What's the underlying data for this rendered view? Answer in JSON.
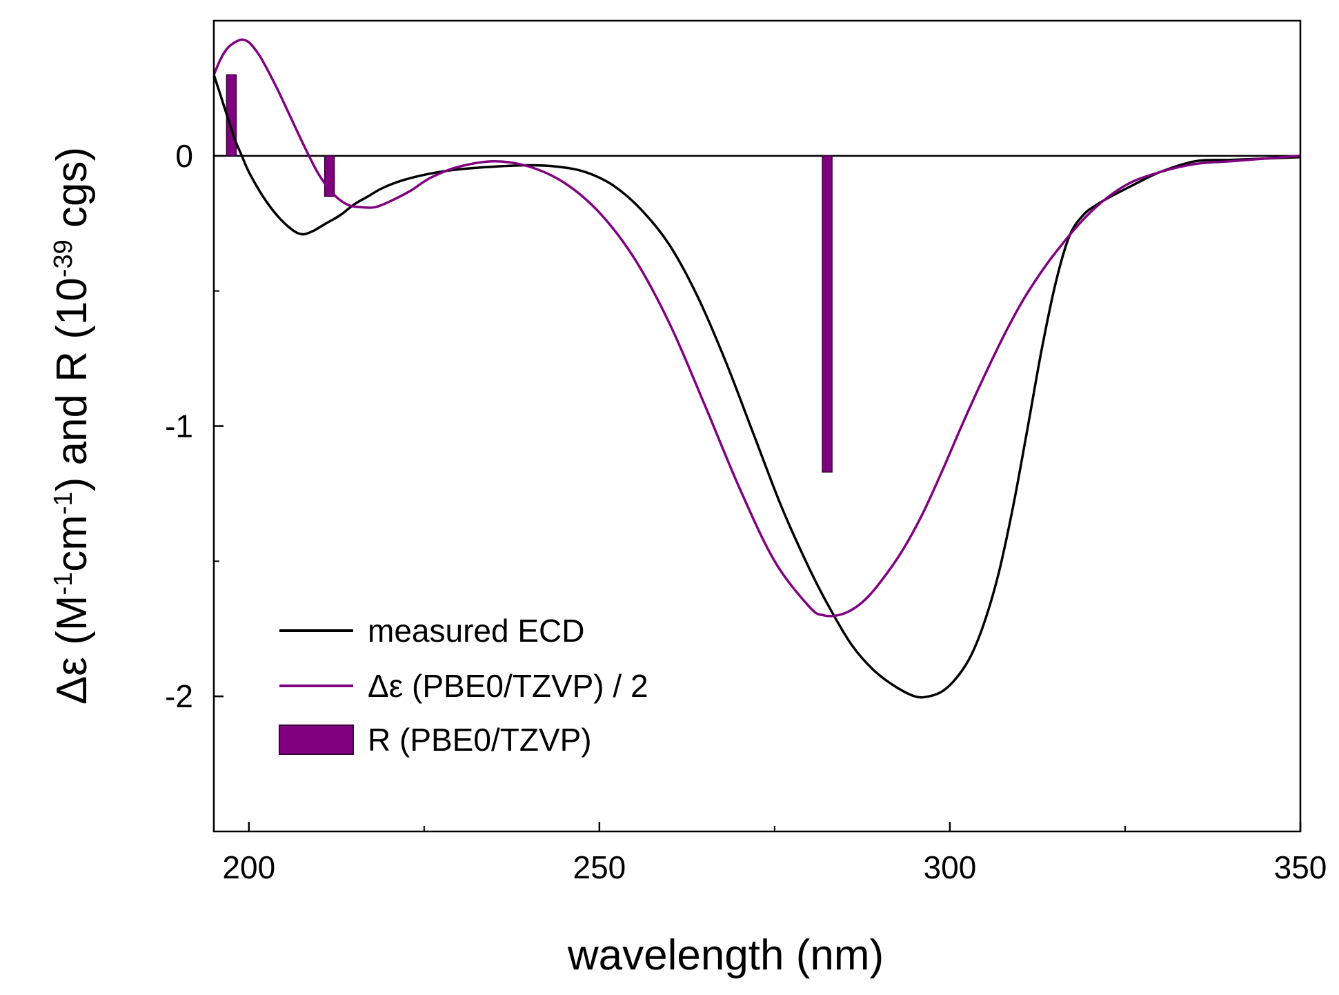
{
  "chart_data": {
    "type": "line",
    "title": "",
    "xlabel": "wavelength (nm)",
    "ylabel": {
      "main": "Δε (M",
      "sup1": "-1",
      "mid1": "cm",
      "sup2": "-1",
      "mid2": ") and R (10",
      "sup3": "-39",
      "end": " cgs)"
    },
    "xlim": [
      195,
      350
    ],
    "ylim": [
      -2.5,
      0.5
    ],
    "xticks": [
      200,
      250,
      300,
      350
    ],
    "xtick_labels": [
      "200",
      "250",
      "300",
      "350"
    ],
    "yticks": [
      0,
      -1,
      -2
    ],
    "ytick_labels": [
      "0",
      "-1",
      "-2"
    ],
    "zero_line": true,
    "grid": false,
    "legend_position": "bottom-left",
    "series": [
      {
        "name": "measured ECD",
        "kind": "line",
        "color": "#000000",
        "x": [
          195,
          196,
          197,
          198,
          199,
          200,
          202,
          204,
          206,
          207.5,
          209,
          211,
          213,
          215,
          217,
          219,
          222,
          226,
          230,
          235,
          240,
          244,
          248,
          252,
          256,
          260,
          264,
          268,
          272,
          276,
          280,
          283,
          286,
          289,
          292,
          295,
          297,
          299,
          301,
          303,
          305,
          307,
          309,
          311,
          313,
          315,
          317,
          319,
          321,
          323,
          326,
          330,
          335,
          340,
          345,
          350
        ],
        "y": [
          0.3,
          0.22,
          0.14,
          0.06,
          0.0,
          -0.06,
          -0.15,
          -0.22,
          -0.27,
          -0.29,
          -0.28,
          -0.25,
          -0.22,
          -0.18,
          -0.15,
          -0.12,
          -0.09,
          -0.065,
          -0.05,
          -0.04,
          -0.035,
          -0.04,
          -0.06,
          -0.11,
          -0.2,
          -0.33,
          -0.52,
          -0.76,
          -1.03,
          -1.3,
          -1.53,
          -1.68,
          -1.81,
          -1.9,
          -1.96,
          -2.0,
          -2.0,
          -1.98,
          -1.93,
          -1.85,
          -1.72,
          -1.54,
          -1.3,
          -1.02,
          -0.73,
          -0.48,
          -0.3,
          -0.22,
          -0.18,
          -0.15,
          -0.11,
          -0.06,
          -0.02,
          -0.015,
          -0.01,
          -0.005
        ]
      },
      {
        "name": "Δε (PBE0/TZVP) / 2",
        "kind": "line",
        "color": "#800080",
        "x": [
          195,
          196,
          197,
          198,
          199,
          200,
          201,
          202,
          204,
          206,
          208,
          210,
          212,
          214,
          216,
          218,
          220,
          223,
          226,
          230,
          235,
          240,
          245,
          250,
          255,
          260,
          265,
          270,
          275,
          280,
          282,
          284,
          286,
          288,
          290,
          293,
          296,
          299,
          302,
          305,
          308,
          311,
          315,
          320,
          325,
          330,
          335,
          340,
          345,
          350
        ],
        "y": [
          0.3,
          0.36,
          0.4,
          0.42,
          0.43,
          0.42,
          0.39,
          0.35,
          0.25,
          0.14,
          0.03,
          -0.07,
          -0.14,
          -0.18,
          -0.19,
          -0.19,
          -0.17,
          -0.13,
          -0.08,
          -0.04,
          -0.02,
          -0.04,
          -0.1,
          -0.21,
          -0.38,
          -0.62,
          -0.92,
          -1.23,
          -1.5,
          -1.67,
          -1.7,
          -1.7,
          -1.68,
          -1.64,
          -1.58,
          -1.47,
          -1.33,
          -1.16,
          -0.98,
          -0.81,
          -0.65,
          -0.51,
          -0.36,
          -0.21,
          -0.11,
          -0.06,
          -0.03,
          -0.02,
          -0.01,
          0.0
        ]
      },
      {
        "name": "R (PBE0/TZVP)",
        "kind": "bar",
        "color": "#800080",
        "x": [
          197.5,
          211.5,
          282.5
        ],
        "y": [
          0.3,
          -0.15,
          -1.17
        ]
      }
    ]
  }
}
